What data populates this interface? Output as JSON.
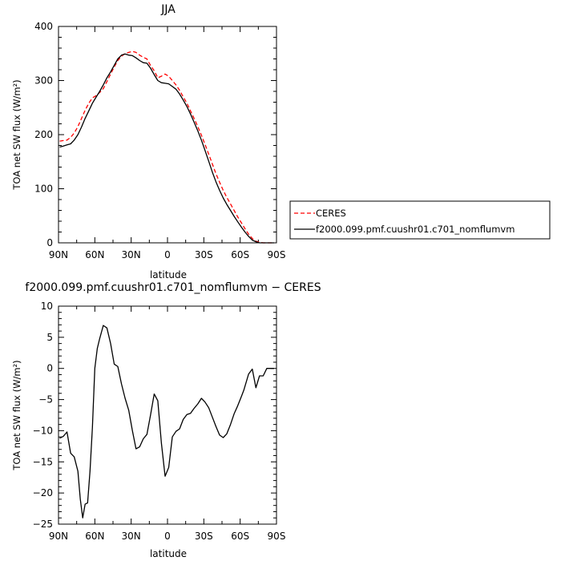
{
  "chart_data": [
    {
      "type": "line",
      "title": "JJA",
      "xlabel": "latitude",
      "ylabel": "TOA net SW flux (W/m²)",
      "xlim": [
        90,
        -90
      ],
      "ylim": [
        0,
        400
      ],
      "xticks": [
        90,
        60,
        30,
        0,
        -30,
        -60,
        -90
      ],
      "xtick_labels": [
        "90N",
        "60N",
        "30N",
        "0",
        "30S",
        "60S",
        "90S"
      ],
      "yticks": [
        0,
        100,
        200,
        300,
        400
      ],
      "ytick_labels": [
        "0",
        "100",
        "200",
        "300",
        "400"
      ],
      "legend_placement": "right",
      "series": [
        {
          "name": "CERES",
          "color": "#ff0000",
          "dash": "dashed",
          "x": [
            89,
            86,
            83,
            80,
            77,
            74,
            71,
            68,
            65,
            62,
            59,
            56,
            53,
            50,
            47,
            44,
            41,
            38,
            35,
            32,
            29,
            26,
            23,
            20,
            17,
            14,
            11,
            8,
            5,
            2,
            -1,
            -4,
            -7,
            -10,
            -13,
            -16,
            -19,
            -22,
            -25,
            -28,
            -31,
            -34,
            -37,
            -40,
            -43,
            -46,
            -49,
            -52,
            -55,
            -58,
            -61,
            -64,
            -67,
            -70,
            -73,
            -76,
            -79,
            -82,
            -85,
            -88
          ],
          "y": [
            188,
            189,
            190,
            195,
            203,
            215,
            230,
            245,
            258,
            268,
            272,
            278,
            285,
            298,
            312,
            325,
            337,
            345,
            350,
            352,
            354,
            352,
            347,
            343,
            340,
            328,
            318,
            305,
            308,
            312,
            308,
            300,
            292,
            282,
            270,
            258,
            244,
            230,
            215,
            199,
            182,
            164,
            146,
            128,
            112,
            97,
            84,
            72,
            60,
            48,
            37,
            26,
            16,
            8,
            3,
            1,
            0,
            0,
            0,
            0
          ]
        },
        {
          "name": "f2000.099.pmf.cuushr01.c701_nomflumvm",
          "color": "#000000",
          "dash": "solid",
          "x": [
            89,
            86,
            83,
            80,
            77,
            74,
            71,
            68,
            65,
            62,
            59,
            56,
            53,
            50,
            47,
            44,
            41,
            38,
            35,
            32,
            29,
            26,
            23,
            20,
            17,
            14,
            11,
            8,
            5,
            2,
            -1,
            -4,
            -7,
            -10,
            -13,
            -16,
            -19,
            -22,
            -25,
            -28,
            -31,
            -34,
            -37,
            -40,
            -43,
            -46,
            -49,
            -52,
            -55,
            -58,
            -61,
            -64,
            -67,
            -70,
            -73,
            -76,
            -79,
            -82,
            -85,
            -88
          ],
          "y": [
            177,
            179,
            181,
            183,
            190,
            200,
            214,
            230,
            244,
            258,
            269,
            280,
            292,
            305,
            316,
            328,
            340,
            347,
            349,
            347,
            346,
            342,
            337,
            333,
            332,
            323,
            311,
            300,
            296,
            295,
            294,
            289,
            284,
            275,
            264,
            252,
            238,
            223,
            207,
            190,
            171,
            151,
            131,
            113,
            97,
            83,
            71,
            60,
            49,
            39,
            29,
            20,
            12,
            5,
            2,
            0,
            0,
            0,
            0,
            0
          ]
        }
      ]
    },
    {
      "type": "line",
      "title": "f2000.099.pmf.cuushr01.c701_nomflumvm − CERES",
      "xlabel": "latitude",
      "ylabel": "TOA net SW flux (W/m²)",
      "xlim": [
        90,
        -90
      ],
      "ylim": [
        -25,
        10
      ],
      "xticks": [
        90,
        60,
        30,
        0,
        -30,
        -60,
        -90
      ],
      "xtick_labels": [
        "90N",
        "60N",
        "30N",
        "0",
        "30S",
        "60S",
        "90S"
      ],
      "yticks": [
        10,
        5,
        0,
        -5,
        -10,
        -15,
        -20,
        -25
      ],
      "ytick_labels": [
        "10",
        "5",
        "0",
        "−5",
        "−10",
        "−15",
        "−20",
        "−25"
      ],
      "series": [
        {
          "color": "#000000",
          "dash": "solid",
          "x": [
            89,
            86,
            83,
            80,
            77,
            74,
            72,
            70,
            68,
            66,
            64,
            62,
            60,
            58,
            56,
            53,
            50,
            47,
            44,
            41,
            38,
            35,
            32,
            29,
            26,
            23,
            20,
            17,
            14,
            11,
            8,
            5,
            2,
            -1,
            -4,
            -7,
            -10,
            -13,
            -16,
            -19,
            -22,
            -25,
            -28,
            -31,
            -34,
            -37,
            -40,
            -43,
            -46,
            -49,
            -52,
            -55,
            -58,
            -61,
            -63,
            -65,
            -67,
            -70,
            -73,
            -76,
            -79,
            -82,
            -85,
            -88
          ],
          "y": [
            -11.2,
            -10.9,
            -10.2,
            -13.6,
            -14.2,
            -16.5,
            -21,
            -24,
            -21.8,
            -21.6,
            -16.5,
            -9.5,
            0,
            3.2,
            4.8,
            6.9,
            6.5,
            4,
            0.7,
            0.3,
            -2.5,
            -4.8,
            -6.7,
            -10,
            -12.9,
            -12.6,
            -11.3,
            -10.6,
            -7.5,
            -4.1,
            -5.2,
            -12,
            -17.3,
            -15.9,
            -11,
            -10.1,
            -9.7,
            -8.2,
            -7.4,
            -7.2,
            -6.4,
            -5.7,
            -4.8,
            -5.4,
            -6.3,
            -7.8,
            -9.3,
            -10.7,
            -11.1,
            -10.5,
            -9,
            -7.3,
            -6,
            -4.5,
            -3.5,
            -2.2,
            -0.9,
            -0.1,
            -3.1,
            -1.2,
            -1.2,
            0,
            0,
            0
          ]
        }
      ]
    }
  ]
}
